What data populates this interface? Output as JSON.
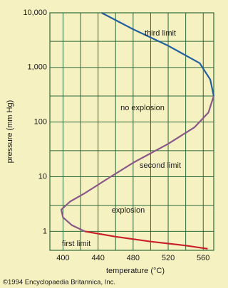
{
  "chart_data": {
    "type": "line",
    "x_label": "temperature (°C)",
    "y_label": "pressure (mm Hg)",
    "credit": "©1994 Encyclopaedia Britannica, Inc.",
    "annotations": [
      "no explosion",
      "explosion"
    ],
    "xlim": [
      385,
      572
    ],
    "xticks": [
      400,
      440,
      480,
      520,
      560
    ],
    "xminor": [
      420,
      460,
      500,
      540
    ],
    "ylim": [
      0.45,
      10000
    ],
    "log_y": true,
    "yticks": [
      {
        "value": 10000,
        "label": "10,000"
      },
      {
        "value": 1000,
        "label": "1,000"
      },
      100,
      10,
      1
    ],
    "yminor": [
      3,
      30,
      300,
      3000
    ],
    "grid": true,
    "grid_color": "#2e6a3c",
    "background": "#f6f1c0",
    "series": [
      {
        "name": "third limit",
        "color": "#24609e",
        "x": [
          444,
          480,
          520,
          556,
          568,
          572
        ],
        "values": [
          10000,
          5000,
          2500,
          1200,
          600,
          300
        ]
      },
      {
        "name": "second limit",
        "color": "#8a5888",
        "x": [
          572,
          566,
          550,
          520,
          480,
          450,
          425,
          408,
          398,
          400,
          410,
          425
        ],
        "values": [
          300,
          150,
          80,
          40,
          18,
          9,
          5,
          3.5,
          2.5,
          1.8,
          1.3,
          1.0
        ]
      },
      {
        "name": "first limit",
        "color": "#c8202c",
        "x": [
          425,
          460,
          500,
          540,
          565
        ],
        "values": [
          1.0,
          0.8,
          0.65,
          0.55,
          0.48
        ]
      }
    ]
  }
}
